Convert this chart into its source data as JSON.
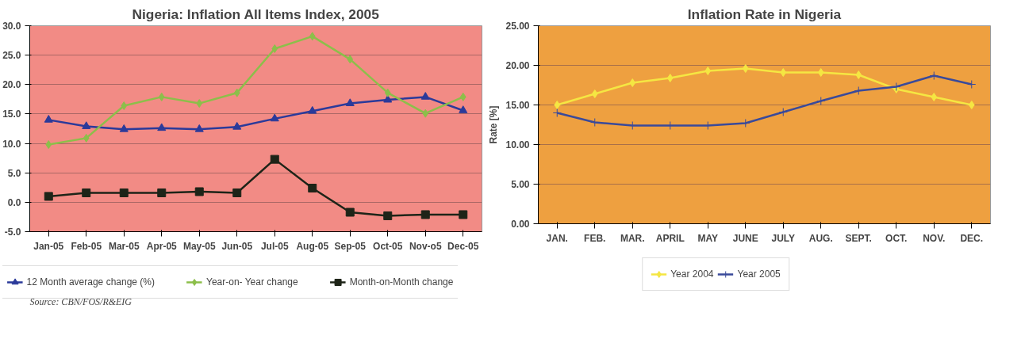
{
  "chart_data": [
    {
      "type": "line",
      "title": "Nigeria: Inflation All Items Index, 2005",
      "categories": [
        "Jan-05",
        "Feb-05",
        "Mar-05",
        "Apr-05",
        "May-05",
        "Jun-05",
        "Jul-05",
        "Aug-05",
        "Sep-05",
        "Oct-05",
        "Nov-o5",
        "Dec-05"
      ],
      "series": [
        {
          "name": "12 Month average change (%)",
          "color": "#2b3a9a",
          "marker": "triangle",
          "values": [
            14.0,
            12.9,
            12.4,
            12.6,
            12.4,
            12.8,
            14.2,
            15.5,
            16.8,
            17.4,
            17.9,
            15.6
          ]
        },
        {
          "name": "Year-on- Year change",
          "color": "#8cbf4a",
          "marker": "diamond",
          "values": [
            9.8,
            10.9,
            16.4,
            17.9,
            16.8,
            18.6,
            26.1,
            28.2,
            24.3,
            18.6,
            15.1,
            17.9
          ]
        },
        {
          "name": "Month-on-Month change",
          "color": "#1e2418",
          "marker": "square",
          "values": [
            1.0,
            1.6,
            1.6,
            1.6,
            1.8,
            1.6,
            7.3,
            2.4,
            -1.7,
            -2.3,
            -2.1,
            -2.1
          ]
        }
      ],
      "ylim": [
        -5,
        30
      ],
      "yticks": [
        {
          "value": -5,
          "label": "-5.0"
        },
        {
          "value": 0,
          "label": "0.0"
        },
        {
          "value": 5,
          "label": "5.0"
        },
        {
          "value": 10,
          "label": "10.0"
        },
        {
          "value": 15,
          "label": "15.0"
        },
        {
          "value": 20,
          "label": "20.0"
        },
        {
          "value": 25,
          "label": "25.0"
        },
        {
          "value": 30,
          "label": "30.0"
        }
      ],
      "grid": "y",
      "legend": "bottom",
      "annotations": [
        "Source: CBN/FOS/R&EIG"
      ]
    },
    {
      "type": "line",
      "title": "Inflation Rate in Nigeria",
      "ylabel": "Rate [%]",
      "categories": [
        "JAN.",
        "FEB.",
        "MAR.",
        "APRIL",
        "MAY",
        "JUNE",
        "JULY",
        "AUG.",
        "SEPT.",
        "OCT.",
        "NOV.",
        "DEC."
      ],
      "series": [
        {
          "name": "Year 2004",
          "color": "#f5e642",
          "marker": "diamond",
          "values": [
            15.0,
            16.4,
            17.8,
            18.4,
            19.3,
            19.6,
            19.1,
            19.1,
            18.8,
            17.0,
            16.0,
            15.0
          ]
        },
        {
          "name": "Year 2005",
          "color": "#3a4a9a",
          "marker": "cross",
          "values": [
            14.0,
            12.8,
            12.4,
            12.4,
            12.4,
            12.7,
            14.1,
            15.5,
            16.8,
            17.3,
            18.7,
            17.6
          ]
        }
      ],
      "ylim": [
        0,
        25
      ],
      "yticks": [
        {
          "value": 0,
          "label": "0.00"
        },
        {
          "value": 5,
          "label": "5.00"
        },
        {
          "value": 10,
          "label": "10.00"
        },
        {
          "value": 15,
          "label": "15.00"
        },
        {
          "value": 20,
          "label": "20.00"
        },
        {
          "value": 25,
          "label": "25.00"
        }
      ],
      "grid": "y",
      "legend": "bottom"
    }
  ]
}
